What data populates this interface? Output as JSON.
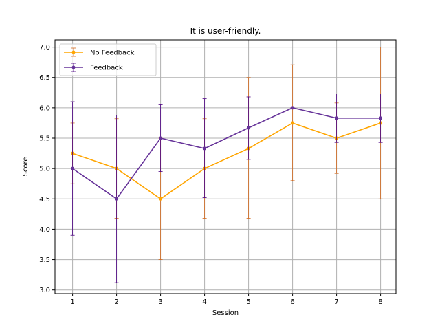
{
  "chart_data": {
    "type": "line",
    "title": "It is user-friendly.",
    "xlabel": "Session",
    "ylabel": "Score",
    "x": [
      1,
      2,
      3,
      4,
      5,
      6,
      7,
      8
    ],
    "xticks": [
      "1",
      "2",
      "3",
      "4",
      "5",
      "6",
      "7",
      "8"
    ],
    "yticks": [
      "3.0",
      "3.5",
      "4.0",
      "4.5",
      "5.0",
      "5.5",
      "6.0",
      "6.5",
      "7.0"
    ],
    "xlim": [
      0.6,
      8.35
    ],
    "ylim": [
      2.94,
      7.12
    ],
    "grid": true,
    "legend_position": "top-left",
    "series": [
      {
        "name": "No Feedback",
        "color": "#FFA500",
        "error_color": "#D2691E",
        "values": [
          5.25,
          5.0,
          4.5,
          5.0,
          5.33,
          5.75,
          5.5,
          5.75
        ],
        "error_low": [
          4.75,
          4.18,
          3.5,
          4.18,
          4.18,
          4.8,
          4.92,
          4.5
        ],
        "error_high": [
          5.75,
          5.82,
          5.5,
          5.82,
          6.5,
          6.71,
          6.08,
          7.0
        ]
      },
      {
        "name": "Feedback",
        "color": "#663399",
        "error_color": "#4B0082",
        "values": [
          5.0,
          4.5,
          5.5,
          5.33,
          5.67,
          6.0,
          5.83,
          5.83
        ],
        "error_low": [
          3.9,
          3.12,
          4.95,
          4.52,
          5.15,
          6.0,
          5.43,
          5.43
        ],
        "error_high": [
          6.1,
          5.88,
          6.05,
          6.15,
          6.18,
          6.0,
          6.23,
          6.23
        ]
      }
    ]
  }
}
